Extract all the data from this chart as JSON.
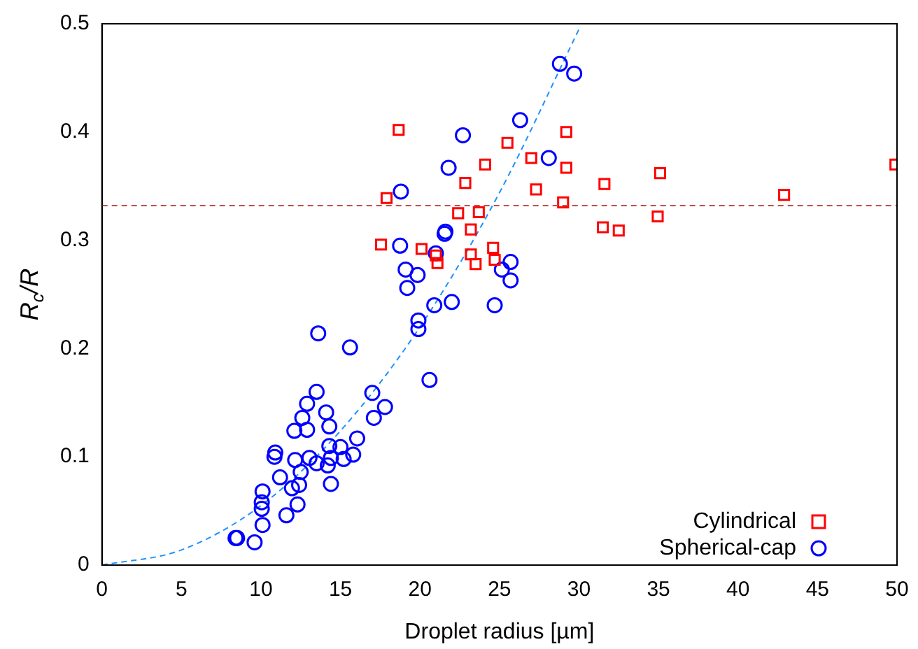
{
  "chart_data": {
    "type": "scatter",
    "xlabel": "Droplet radius [µm]",
    "ylabel": "R$_{c}$/R",
    "xlim": [
      0,
      50
    ],
    "xticks": [
      0,
      5,
      10,
      15,
      20,
      25,
      30,
      35,
      40,
      45,
      50
    ],
    "ylim": [
      0,
      0.5
    ],
    "yticks": [
      0,
      0.1,
      0.2,
      0.3,
      0.4,
      0.5
    ],
    "grid": false,
    "legend": "bottom right",
    "ref_lines": [
      {
        "axis": "y",
        "value": 0.332,
        "color": "#c0504d",
        "line_style": "dashed"
      }
    ],
    "series": [
      {
        "name": "Cylindrical",
        "marker": "square",
        "color": "#ff0000",
        "x": [
          18.66,
          17.9,
          17.55,
          20.1,
          21.0,
          21.1,
          22.4,
          22.85,
          23.2,
          23.2,
          23.5,
          23.7,
          24.1,
          24.6,
          24.7,
          25.5,
          27.0,
          27.3,
          29.0,
          29.2,
          29.2,
          31.5,
          31.6,
          32.5,
          34.95,
          35.1,
          42.9,
          49.9
        ],
        "values": [
          0.402,
          0.339,
          0.296,
          0.292,
          0.286,
          0.279,
          0.325,
          0.353,
          0.31,
          0.287,
          0.278,
          0.326,
          0.37,
          0.293,
          0.282,
          0.39,
          0.376,
          0.347,
          0.335,
          0.4,
          0.367,
          0.312,
          0.352,
          0.309,
          0.322,
          0.362,
          0.342,
          0.37
        ]
      },
      {
        "name": "Spherical-cap",
        "marker": "circle",
        "color": "#0000ff",
        "x": [
          28.8,
          29.7,
          26.3,
          22.7,
          21.8,
          28.1,
          18.8,
          21.6,
          21.55,
          18.75,
          21.0,
          19.1,
          19.85,
          19.2,
          25.7,
          25.15,
          25.7,
          20.9,
          22.0,
          24.7,
          19.9,
          19.9,
          20.6,
          13.6,
          15.6,
          13.5,
          12.9,
          14.1,
          12.6,
          12.1,
          12.9,
          14.3,
          10.9,
          10.85,
          12.15,
          13.05,
          13.5,
          14.2,
          14.3,
          15.0,
          14.4,
          15.2,
          15.8,
          16.05,
          17.0,
          17.8,
          17.1,
          12.5,
          12.4,
          11.95,
          11.2,
          14.4,
          12.3,
          11.6,
          10.1,
          10.05,
          10.05,
          10.1,
          8.4,
          8.5,
          9.6
        ],
        "values": [
          0.463,
          0.454,
          0.411,
          0.397,
          0.367,
          0.376,
          0.345,
          0.308,
          0.306,
          0.295,
          0.288,
          0.273,
          0.268,
          0.256,
          0.28,
          0.273,
          0.263,
          0.24,
          0.243,
          0.24,
          0.226,
          0.218,
          0.171,
          0.214,
          0.201,
          0.16,
          0.149,
          0.141,
          0.136,
          0.124,
          0.125,
          0.128,
          0.104,
          0.1,
          0.097,
          0.099,
          0.094,
          0.092,
          0.11,
          0.109,
          0.099,
          0.098,
          0.102,
          0.117,
          0.159,
          0.146,
          0.136,
          0.086,
          0.074,
          0.071,
          0.081,
          0.075,
          0.056,
          0.046,
          0.068,
          0.058,
          0.052,
          0.037,
          0.025,
          0.025,
          0.021
        ]
      },
      {
        "type": "line",
        "marker": "none",
        "line_style": "dashed",
        "color": "#1e90ff",
        "x": [
          0,
          5,
          10,
          15,
          20,
          25,
          30
        ],
        "values": [
          0,
          0.014,
          0.055,
          0.124,
          0.22,
          0.344,
          0.495
        ]
      }
    ]
  }
}
